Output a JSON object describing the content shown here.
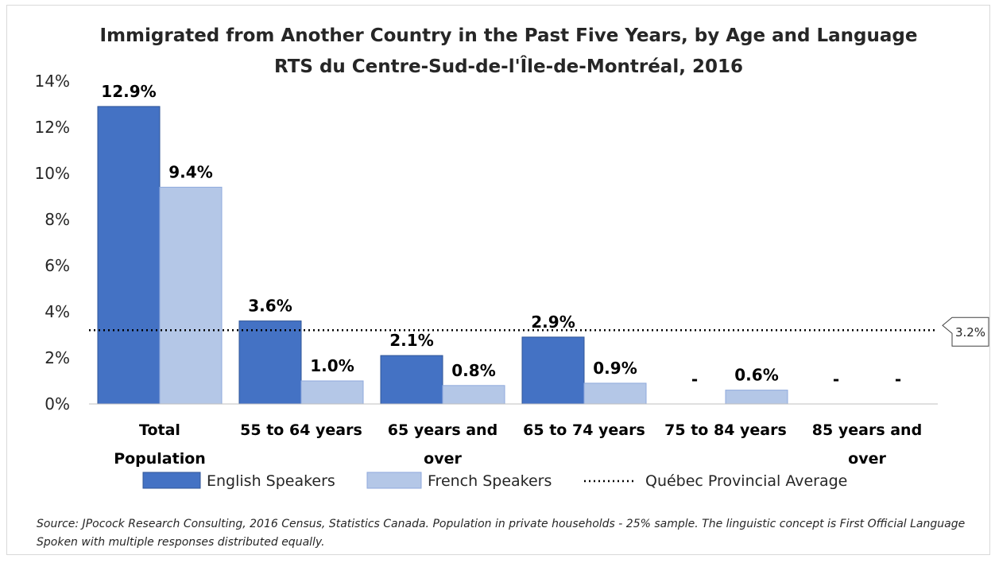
{
  "chart_data": {
    "type": "bar",
    "title": "Immigrated from Another Country in the Past Five Years, by Age and Language",
    "subtitle": "RTS du Centre-Sud-de-l'Île-de-Montréal, 2016",
    "categories": [
      [
        "Total",
        "Population"
      ],
      [
        "55 to 64 years"
      ],
      [
        "65 years and",
        "over"
      ],
      [
        "65 to 74 years"
      ],
      [
        "75 to 84 years"
      ],
      [
        "85 years and",
        "over"
      ]
    ],
    "series": [
      {
        "name": "English Speakers",
        "color": "#4472c4",
        "values": [
          12.9,
          3.6,
          2.1,
          2.9,
          null,
          null
        ],
        "labels": [
          "12.9%",
          "3.6%",
          "2.1%",
          "2.9%",
          "-",
          "-"
        ]
      },
      {
        "name": "French Speakers",
        "color": "#b4c7e7",
        "values": [
          9.4,
          1.0,
          0.8,
          0.9,
          0.6,
          null
        ],
        "labels": [
          "9.4%",
          "1.0%",
          "0.8%",
          "0.9%",
          "0.6%",
          "-"
        ]
      }
    ],
    "reference_line": {
      "name": "Québec Provincial Average",
      "value": 3.2,
      "label": "3.2%",
      "style": "dotted"
    },
    "ylim": [
      0,
      14
    ],
    "yticks": [
      0,
      2,
      4,
      6,
      8,
      10,
      12,
      14
    ],
    "ytick_labels": [
      "0%",
      "2%",
      "4%",
      "6%",
      "8%",
      "10%",
      "12%",
      "14%"
    ],
    "grid": false,
    "legend_position": "bottom"
  },
  "source_note": "Source: JPocock Research Consulting, 2016 Census, Statistics Canada. Population in private households - 25% sample. The linguistic concept is First Official Language Spoken with multiple responses distributed equally."
}
